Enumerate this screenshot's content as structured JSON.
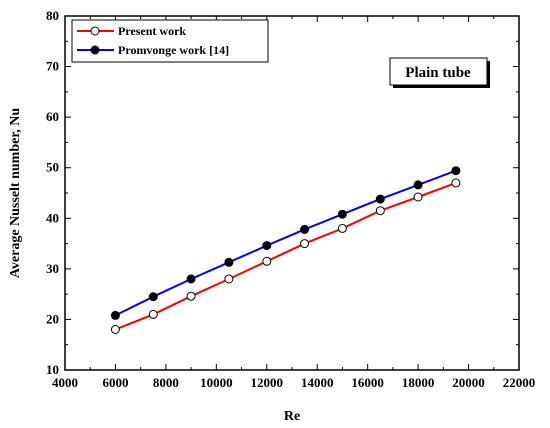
{
  "chart_data": {
    "type": "line",
    "xlabel": "Re",
    "ylabel": "Average Nusselt number, Nu",
    "xlim": [
      4000,
      22000
    ],
    "ylim": [
      10,
      80
    ],
    "xticks": [
      4000,
      6000,
      8000,
      10000,
      12000,
      14000,
      16000,
      18000,
      20000,
      22000
    ],
    "yticks": [
      10,
      20,
      30,
      40,
      50,
      60,
      70,
      80
    ],
    "x_tick_labels": [
      "4000",
      "6000",
      "8000",
      "10000",
      "12000",
      "14000",
      "16000",
      "18000",
      "20000",
      "22000"
    ],
    "y_tick_labels": [
      "10",
      "20",
      "30",
      "40",
      "50",
      "60",
      "70",
      "80"
    ],
    "legend_position": "top-left",
    "grid": false,
    "annotation": "Plain tube",
    "series": [
      {
        "name": "Present work",
        "line_color": "#ff0000",
        "marker": "open-circle",
        "x": [
          6000,
          7500,
          9000,
          10500,
          12000,
          13500,
          15000,
          16500,
          18000,
          19500
        ],
        "y": [
          18,
          21,
          24.6,
          28,
          31.5,
          35,
          38,
          41.5,
          44.2,
          47
        ]
      },
      {
        "name": "Promvonge work [14]",
        "line_color": "#0000ff",
        "marker": "filled-circle",
        "x": [
          6000,
          7500,
          9000,
          10500,
          12000,
          13500,
          15000,
          16500,
          18000,
          19500
        ],
        "y": [
          20.8,
          24.5,
          28,
          31.3,
          34.6,
          37.8,
          40.8,
          43.8,
          46.6,
          49.4
        ]
      }
    ]
  }
}
